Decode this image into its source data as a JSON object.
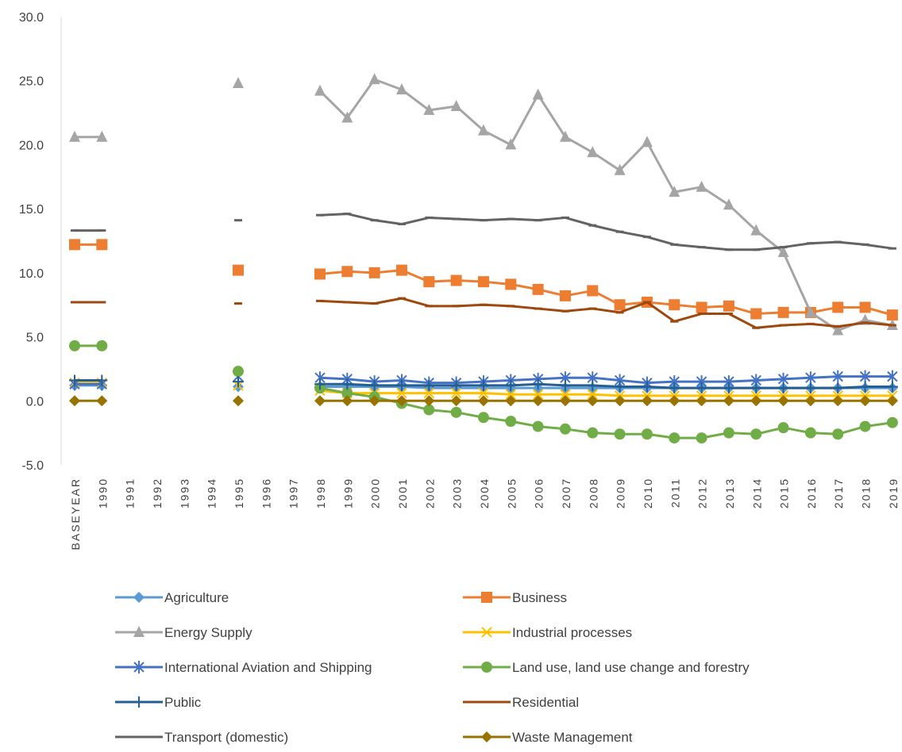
{
  "chart_data": {
    "type": "line",
    "categories": [
      "BASEYEAR",
      "1990",
      "1991",
      "1992",
      "1993",
      "1994",
      "1995",
      "1996",
      "1997",
      "1998",
      "1999",
      "2000",
      "2001",
      "2002",
      "2003",
      "2004",
      "2005",
      "2006",
      "2007",
      "2008",
      "2009",
      "2010",
      "2011",
      "2012",
      "2013",
      "2014",
      "2015",
      "2016",
      "2017",
      "2018",
      "2019"
    ],
    "ylim": [
      -5,
      30
    ],
    "yticks": [
      {
        "value": -5,
        "label": "-5.0"
      },
      {
        "value": 0,
        "label": "0.0"
      },
      {
        "value": 5,
        "label": "5.0"
      },
      {
        "value": 10,
        "label": "10.0"
      },
      {
        "value": 15,
        "label": "15.0"
      },
      {
        "value": 20,
        "label": "20.0"
      },
      {
        "value": 25,
        "label": "25.0"
      },
      {
        "value": 30,
        "label": "30.0"
      }
    ],
    "grid": false,
    "legend": "bottom",
    "series": [
      {
        "name": "Agriculture",
        "color": "#5b9bd5",
        "marker": "diamond",
        "values": [
          1.2,
          1.2,
          null,
          null,
          null,
          null,
          1.1,
          null,
          null,
          1.1,
          1.1,
          1.1,
          1.1,
          1.0,
          1.0,
          1.0,
          1.0,
          1.0,
          1.0,
          1.0,
          1.0,
          1.0,
          1.0,
          1.0,
          1.0,
          1.0,
          1.0,
          1.0,
          1.0,
          1.0,
          1.0
        ]
      },
      {
        "name": "Business",
        "color": "#ed7d31",
        "marker": "square",
        "values": [
          12.2,
          12.2,
          null,
          null,
          null,
          null,
          10.2,
          null,
          null,
          9.9,
          10.1,
          10.0,
          10.2,
          9.3,
          9.4,
          9.3,
          9.1,
          8.7,
          8.2,
          8.6,
          7.5,
          7.7,
          7.5,
          7.3,
          7.4,
          6.8,
          6.9,
          6.9,
          7.3,
          7.3,
          6.7
        ]
      },
      {
        "name": "Energy Supply",
        "color": "#a5a5a5",
        "marker": "triangle",
        "values": [
          20.6,
          20.6,
          null,
          null,
          null,
          null,
          24.8,
          null,
          null,
          24.2,
          22.1,
          25.1,
          24.3,
          22.7,
          23.0,
          21.1,
          20.0,
          23.9,
          20.6,
          19.4,
          18.0,
          20.2,
          16.3,
          16.7,
          15.3,
          13.3,
          11.6,
          6.9,
          5.5,
          6.3,
          5.9
        ]
      },
      {
        "name": "Industrial processes",
        "color": "#ffc000",
        "marker": "x",
        "values": [
          1.4,
          1.4,
          null,
          null,
          null,
          null,
          1.2,
          null,
          null,
          0.8,
          0.6,
          0.6,
          0.6,
          0.6,
          0.6,
          0.6,
          0.5,
          0.5,
          0.5,
          0.5,
          0.4,
          0.4,
          0.4,
          0.4,
          0.4,
          0.4,
          0.4,
          0.4,
          0.4,
          0.4,
          0.4
        ]
      },
      {
        "name": "International Aviation and Shipping",
        "color": "#4472c4",
        "marker": "star",
        "values": [
          1.3,
          1.3,
          null,
          null,
          null,
          null,
          1.9,
          null,
          null,
          1.8,
          1.7,
          1.5,
          1.6,
          1.4,
          1.4,
          1.5,
          1.6,
          1.7,
          1.8,
          1.8,
          1.6,
          1.4,
          1.5,
          1.5,
          1.5,
          1.6,
          1.7,
          1.8,
          1.9,
          1.9,
          1.9
        ]
      },
      {
        "name": "Land use, land use change and forestry",
        "color": "#70ad47",
        "marker": "circle",
        "values": [
          4.3,
          4.3,
          null,
          null,
          null,
          null,
          2.3,
          null,
          null,
          1.0,
          0.6,
          0.3,
          -0.2,
          -0.7,
          -0.9,
          -1.3,
          -1.6,
          -2.0,
          -2.2,
          -2.5,
          -2.6,
          -2.6,
          -2.9,
          -2.9,
          -2.5,
          -2.6,
          -2.1,
          -2.5,
          -2.6,
          -2.0,
          -1.7
        ]
      },
      {
        "name": "Public",
        "color": "#255e91",
        "marker": "plus",
        "values": [
          1.6,
          1.6,
          null,
          null,
          null,
          null,
          1.5,
          null,
          null,
          1.3,
          1.3,
          1.2,
          1.2,
          1.2,
          1.2,
          1.2,
          1.2,
          1.3,
          1.2,
          1.2,
          1.1,
          1.1,
          1.0,
          1.0,
          1.0,
          1.0,
          1.0,
          1.0,
          1.0,
          1.1,
          1.1
        ]
      },
      {
        "name": "Residential",
        "color": "#9e480e",
        "marker": "dash",
        "values": [
          7.7,
          7.7,
          null,
          null,
          null,
          null,
          7.6,
          null,
          null,
          7.8,
          7.7,
          7.6,
          8.0,
          7.4,
          7.4,
          7.5,
          7.4,
          7.2,
          7.0,
          7.2,
          6.9,
          7.7,
          6.2,
          6.8,
          6.8,
          5.7,
          5.9,
          6.0,
          5.8,
          6.1,
          5.9
        ]
      },
      {
        "name": "Transport (domestic)",
        "color": "#636363",
        "marker": "dash",
        "values": [
          13.3,
          13.3,
          null,
          null,
          null,
          null,
          14.1,
          null,
          null,
          14.5,
          14.6,
          14.1,
          13.8,
          14.3,
          14.2,
          14.1,
          14.2,
          14.1,
          14.3,
          13.7,
          13.2,
          12.8,
          12.2,
          12.0,
          11.8,
          11.8,
          12.0,
          12.3,
          12.4,
          12.2,
          11.9
        ]
      },
      {
        "name": "Waste Management",
        "color": "#997300",
        "marker": "diamond",
        "values": [
          0,
          0,
          null,
          null,
          null,
          null,
          0,
          null,
          null,
          0,
          0,
          0,
          0,
          0,
          0,
          0,
          0,
          0,
          0,
          0,
          0,
          0,
          0,
          0,
          0,
          0,
          0,
          0,
          0,
          0,
          0
        ]
      }
    ]
  }
}
